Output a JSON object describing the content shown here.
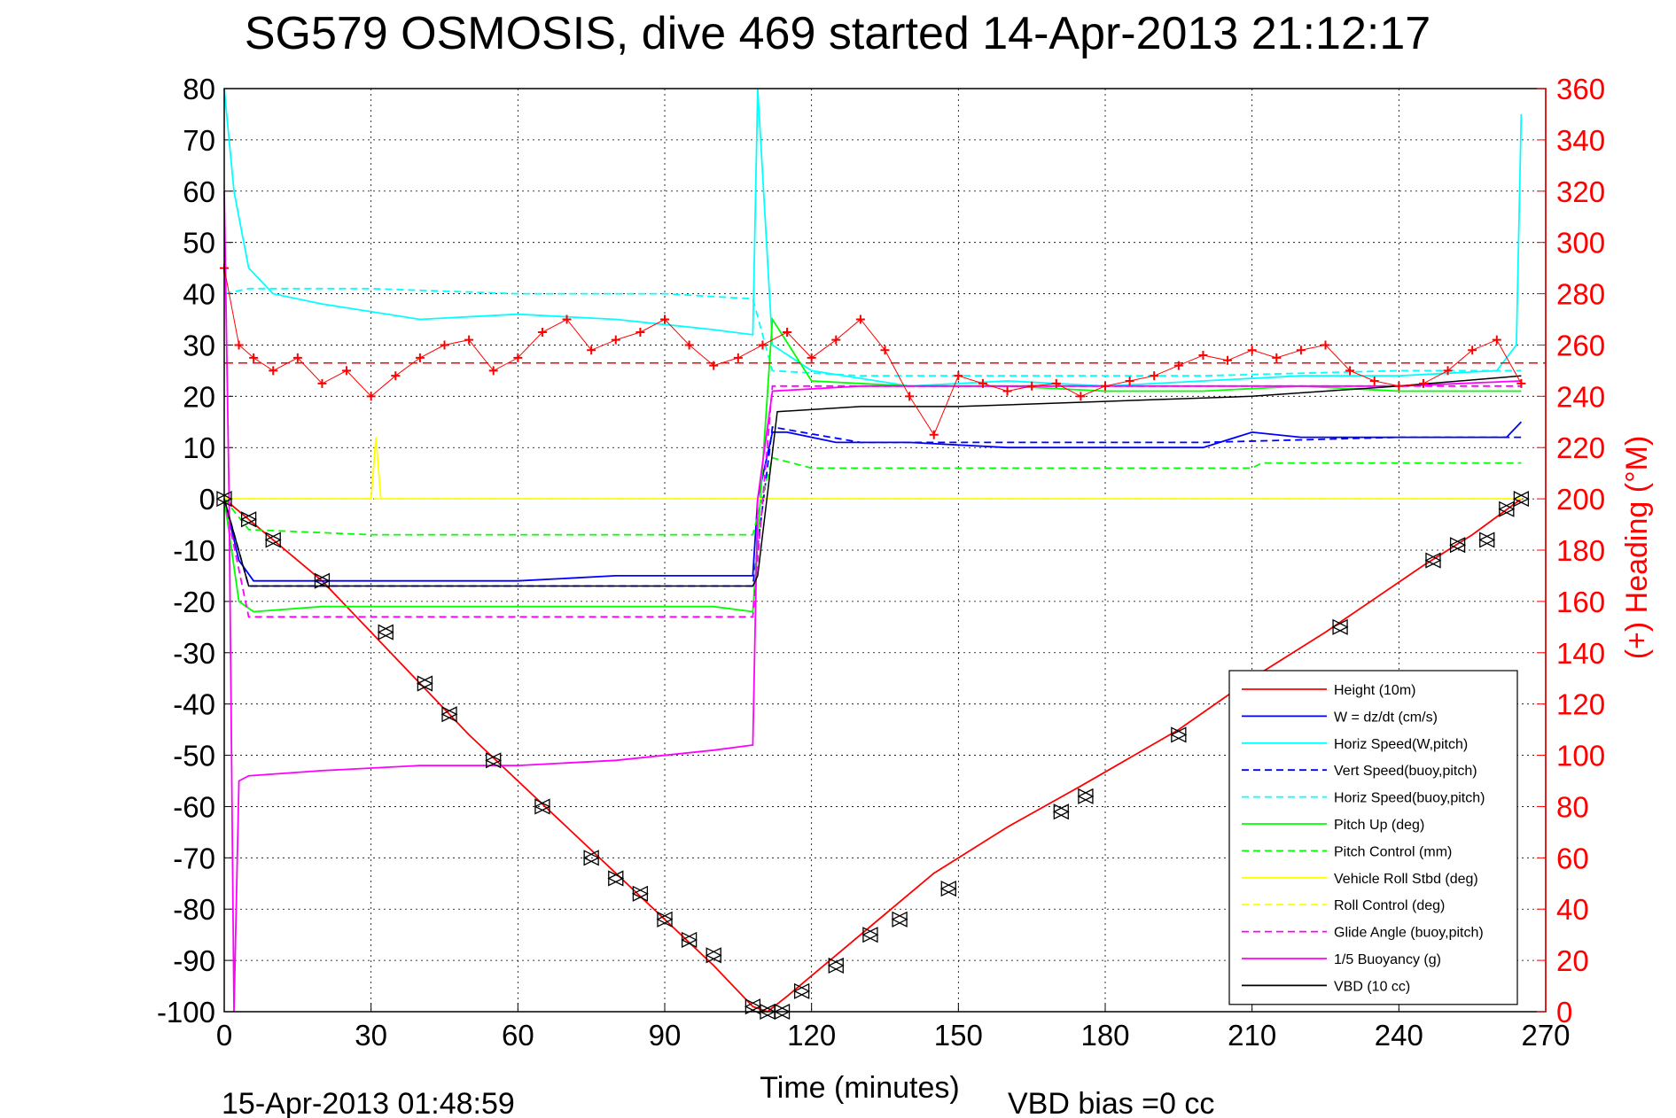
{
  "title": "SG579 OSMOSIS, dive 469 started 14-Apr-2013 21:12:17",
  "footer": {
    "end_time": "15-Apr-2013 01:48:59",
    "vbd_bias": "VBD bias =0 cc"
  },
  "chart_data": {
    "type": "line",
    "title": "SG579 OSMOSIS, dive 469 started 14-Apr-2013 21:12:17",
    "xlabel": "Time (minutes)",
    "ylabel": "",
    "y2label": "(+) Heading (°M)",
    "xlim": [
      0,
      270
    ],
    "ylim": [
      -100,
      80
    ],
    "y2lim": [
      0,
      360
    ],
    "xticks": [
      0,
      30,
      60,
      90,
      120,
      150,
      180,
      210,
      240,
      270
    ],
    "yticks": [
      80,
      70,
      60,
      50,
      40,
      30,
      20,
      10,
      0,
      -10,
      -20,
      -30,
      -40,
      -50,
      -60,
      -70,
      -80,
      -90,
      -100
    ],
    "y2ticks": [
      360,
      340,
      320,
      300,
      280,
      260,
      240,
      220,
      200,
      180,
      160,
      140,
      120,
      100,
      80,
      60,
      40,
      20,
      0
    ],
    "grid": true,
    "legend_position": "bottom-right",
    "colors": {
      "red": "#ff0000",
      "blue": "#0000ff",
      "cyan": "#00ffff",
      "green": "#00ff00",
      "yellow": "#ffff00",
      "magenta": "#ff00ff",
      "black": "#000000"
    },
    "series": [
      {
        "name": "Height (10m)",
        "color": "#ff0000",
        "dash": "solid",
        "x": [
          0,
          5,
          10,
          20,
          30,
          40,
          50,
          60,
          70,
          80,
          90,
          100,
          108,
          111,
          115,
          125,
          135,
          145,
          160,
          175,
          195,
          210,
          225,
          245,
          255,
          265
        ],
        "y": [
          0,
          -4,
          -8,
          -16,
          -26,
          -36,
          -46,
          -55,
          -64,
          -73,
          -82,
          -91,
          -99,
          -100,
          -97,
          -89,
          -81,
          -73,
          -64,
          -56,
          -45,
          -35,
          -26,
          -13,
          -7,
          0
        ]
      },
      {
        "name": "W = dz/dt (cm/s)",
        "color": "#0000ff",
        "dash": "solid",
        "x": [
          0,
          3,
          6,
          20,
          30,
          40,
          60,
          80,
          95,
          108,
          109,
          112,
          115,
          125,
          140,
          160,
          180,
          200,
          210,
          220,
          240,
          255,
          262,
          265
        ],
        "y": [
          0,
          -12,
          -16,
          -16,
          -16,
          -16,
          -16,
          -15,
          -15,
          -15,
          0,
          13,
          13,
          11,
          11,
          10,
          10,
          10,
          13,
          12,
          12,
          12,
          12,
          15
        ]
      },
      {
        "name": "Horiz Speed(W,pitch)",
        "color": "#00ffff",
        "dash": "solid",
        "x": [
          0,
          2,
          5,
          10,
          20,
          40,
          60,
          80,
          100,
          108,
          109,
          112,
          120,
          140,
          160,
          180,
          200,
          220,
          240,
          260,
          264,
          265
        ],
        "y": [
          80,
          60,
          45,
          40,
          38,
          35,
          36,
          35,
          33,
          32,
          80,
          30,
          25,
          22,
          23,
          22,
          23,
          24,
          24,
          25,
          30,
          75
        ]
      },
      {
        "name": "Vert Speed(buoy,pitch)",
        "color": "#0000ff",
        "dash": "dashed",
        "x": [
          0,
          5,
          30,
          60,
          90,
          108,
          112,
          130,
          160,
          200,
          240,
          265
        ],
        "y": [
          0,
          -17,
          -17,
          -17,
          -17,
          -17,
          14,
          11,
          11,
          11,
          12,
          12
        ]
      },
      {
        "name": "Horiz Speed(buoy,pitch)",
        "color": "#00ffff",
        "dash": "dashed",
        "x": [
          0,
          5,
          30,
          60,
          90,
          108,
          112,
          130,
          160,
          200,
          240,
          265
        ],
        "y": [
          40,
          41,
          41,
          40,
          40,
          39,
          25,
          24,
          24,
          24,
          25,
          25
        ]
      },
      {
        "name": "Pitch Up (deg)",
        "color": "#00ff00",
        "dash": "solid",
        "x": [
          0,
          3,
          6,
          20,
          40,
          60,
          80,
          100,
          108,
          112,
          120,
          140,
          160,
          180,
          200,
          220,
          240,
          265
        ],
        "y": [
          0,
          -20,
          -22,
          -21,
          -21,
          -21,
          -21,
          -21,
          -22,
          35,
          23,
          22,
          22,
          21,
          21,
          22,
          21,
          21
        ]
      },
      {
        "name": "Pitch Control (mm)",
        "color": "#00ff00",
        "dash": "dashed",
        "x": [
          0,
          5,
          30,
          60,
          90,
          108,
          112,
          120,
          150,
          210,
          212,
          265
        ],
        "y": [
          0,
          -6,
          -7,
          -7,
          -7,
          -7,
          8,
          6,
          6,
          6,
          7,
          7
        ]
      },
      {
        "name": "Vehicle Roll Stbd (deg)",
        "color": "#ffff00",
        "dash": "solid",
        "x": [
          0,
          10,
          20,
          30,
          31,
          32,
          40,
          60,
          80,
          90,
          100,
          108,
          112,
          120,
          150,
          180,
          210,
          240,
          255,
          265
        ],
        "y": [
          0,
          0,
          0,
          0,
          12,
          0,
          0,
          0,
          0,
          0,
          0,
          0,
          0,
          0,
          0,
          0,
          0,
          0,
          0,
          0
        ]
      },
      {
        "name": "Roll Control (deg)",
        "color": "#ffff00",
        "dash": "dashed",
        "x": [
          0,
          30,
          60,
          90,
          108,
          120,
          150,
          180,
          210,
          240,
          265
        ],
        "y": [
          0,
          0,
          0,
          0,
          0,
          0,
          0,
          0,
          0,
          0,
          0
        ]
      },
      {
        "name": "Glide Angle (buoy,pitch)",
        "color": "#ff00ff",
        "dash": "dashed",
        "x": [
          0,
          5,
          30,
          60,
          90,
          108,
          112,
          130,
          160,
          200,
          240,
          265
        ],
        "y": [
          0,
          -23,
          -23,
          -23,
          -23,
          -23,
          22,
          22,
          22,
          22,
          22,
          22
        ]
      },
      {
        "name": "1/5 Buoyancy (g)",
        "color": "#ff00ff",
        "dash": "solid",
        "x": [
          0,
          1,
          2,
          3,
          5,
          20,
          40,
          60,
          80,
          100,
          108,
          109,
          112,
          130,
          160,
          200,
          240,
          265
        ],
        "y": [
          60,
          0,
          -100,
          -55,
          -54,
          -53,
          -52,
          -52,
          -51,
          -49,
          -48,
          0,
          21,
          22,
          22,
          22,
          22,
          23
        ]
      },
      {
        "name": "VBD (10 cc)",
        "color": "#000000",
        "dash": "solid",
        "x": [
          0,
          5,
          30,
          60,
          90,
          108,
          109,
          113,
          130,
          150,
          180,
          210,
          240,
          265
        ],
        "y": [
          0,
          -17,
          -17,
          -17,
          -17,
          -17,
          -15,
          17,
          18,
          18,
          19,
          20,
          22,
          24
        ]
      },
      {
        "name": "Heading",
        "color": "#ff0000",
        "marker": "+",
        "axis": "right",
        "x": [
          0,
          3,
          6,
          10,
          15,
          20,
          25,
          30,
          35,
          40,
          45,
          50,
          55,
          60,
          65,
          70,
          75,
          80,
          85,
          90,
          95,
          100,
          105,
          110,
          115,
          120,
          125,
          130,
          135,
          140,
          145,
          150,
          155,
          160,
          165,
          170,
          175,
          180,
          185,
          190,
          195,
          200,
          205,
          210,
          215,
          220,
          225,
          230,
          235,
          240,
          245,
          250,
          255,
          260,
          265
        ],
        "y": [
          290,
          260,
          255,
          250,
          255,
          245,
          250,
          240,
          248,
          255,
          260,
          262,
          250,
          255,
          265,
          270,
          258,
          262,
          265,
          270,
          260,
          252,
          255,
          260,
          265,
          255,
          262,
          270,
          258,
          240,
          225,
          248,
          245,
          242,
          244,
          245,
          240,
          244,
          246,
          248,
          252,
          256,
          254,
          258,
          255,
          258,
          260,
          250,
          246,
          244,
          245,
          250,
          258,
          262,
          245
        ]
      }
    ],
    "heading_reference": {
      "value_deg": 253,
      "color": "#ff0000",
      "dash": "dashed"
    },
    "height_markers": {
      "x": [
        0,
        5,
        10,
        20,
        33,
        41,
        46,
        55,
        65,
        75,
        80,
        85,
        90,
        95,
        100,
        108,
        111,
        114,
        118,
        125,
        132,
        138,
        148,
        171,
        176,
        195,
        228,
        247,
        252,
        258,
        262,
        265
      ],
      "y": [
        0,
        -4,
        -8,
        -16,
        -26,
        -36,
        -42,
        -51,
        -60,
        -70,
        -74,
        -77,
        -82,
        -86,
        -89,
        -99,
        -100,
        -100,
        -96,
        -91,
        -85,
        -82,
        -76,
        -61,
        -58,
        -46,
        -25,
        -12,
        -9,
        -8,
        -2,
        0
      ]
    }
  }
}
